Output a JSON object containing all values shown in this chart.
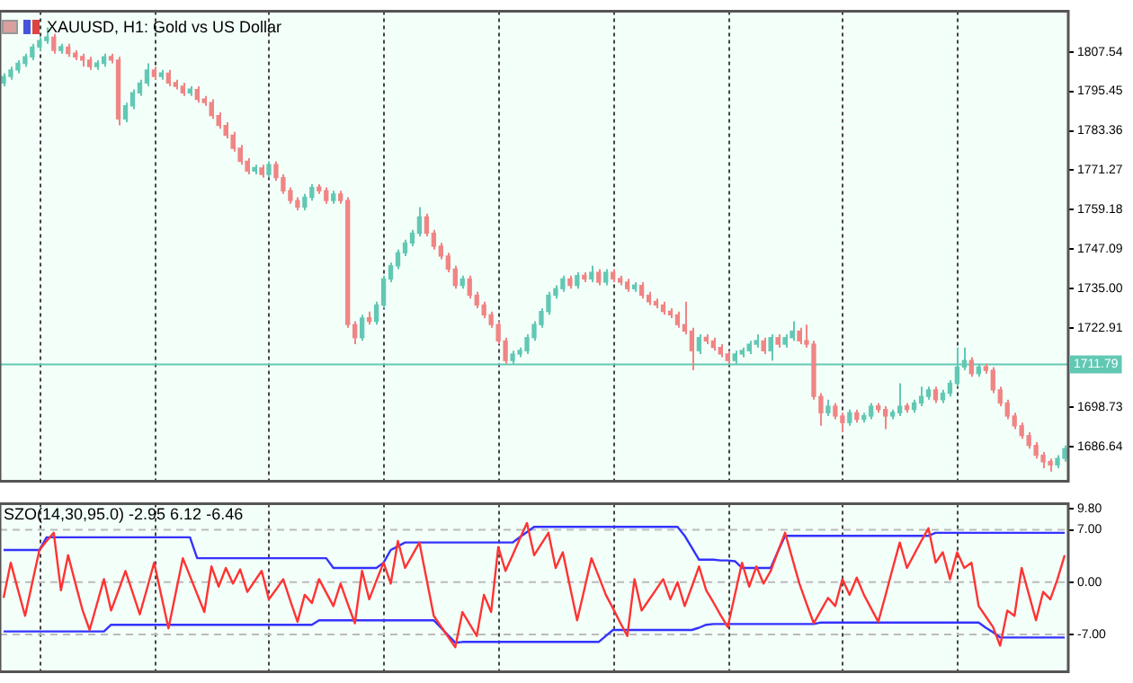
{
  "chart_data": [
    {
      "type": "candlestick",
      "title": "XAUUSD, H1:  Gold vs US Dollar",
      "categories": [
        null,
        null,
        null,
        null,
        null,
        null,
        null,
        null,
        null,
        null,
        null,
        null,
        null,
        null,
        null,
        null,
        null,
        null,
        null,
        null,
        null,
        null,
        null,
        null,
        null,
        null,
        null,
        null,
        null,
        null,
        null,
        null,
        null,
        null,
        null,
        null,
        null,
        null,
        null,
        null,
        null,
        null,
        null,
        null,
        null,
        null,
        null,
        null,
        null,
        null,
        null,
        null,
        null,
        null,
        null,
        null,
        null,
        null,
        null,
        null,
        null,
        null,
        null,
        null,
        null,
        null,
        null,
        null,
        null,
        null,
        null,
        null,
        null,
        null,
        null,
        null,
        null,
        null,
        null,
        null,
        null,
        null,
        null,
        null,
        null,
        null,
        null,
        null,
        null,
        null,
        null,
        null,
        null,
        null,
        null,
        null,
        null,
        null,
        null,
        null,
        null,
        null,
        null,
        null,
        null,
        null,
        null,
        null,
        null,
        null,
        null,
        null,
        null,
        null,
        null,
        null,
        null,
        null,
        null,
        null,
        null,
        null,
        null,
        null,
        null,
        null,
        null,
        null,
        null,
        null,
        null,
        null,
        null,
        null,
        null,
        null,
        null,
        null,
        null,
        null,
        null,
        null,
        null,
        null,
        null,
        null,
        null,
        null,
        null
      ],
      "ohlc": [
        [
          1798,
          1801,
          1797,
          1800
        ],
        [
          1800,
          1803,
          1799,
          1802
        ],
        [
          1802,
          1805,
          1801,
          1804
        ],
        [
          1804,
          1807,
          1803,
          1806
        ],
        [
          1806,
          1810,
          1805,
          1809
        ],
        [
          1809,
          1812,
          1808,
          1811
        ],
        [
          1811,
          1815,
          1810,
          1812
        ],
        [
          1812,
          1813,
          1807,
          1808
        ],
        [
          1808,
          1810,
          1807,
          1809
        ],
        [
          1809,
          1810,
          1806,
          1807
        ],
        [
          1807,
          1808,
          1805,
          1806
        ],
        [
          1806,
          1807,
          1803,
          1805
        ],
        [
          1805,
          1806,
          1802,
          1803
        ],
        [
          1803,
          1805,
          1802,
          1804
        ],
        [
          1804,
          1807,
          1803,
          1806
        ],
        [
          1806,
          1807,
          1804,
          1805
        ],
        [
          1805,
          1806,
          1785,
          1787
        ],
        [
          1787,
          1792,
          1786,
          1791
        ],
        [
          1791,
          1796,
          1790,
          1795
        ],
        [
          1795,
          1799,
          1794,
          1798
        ],
        [
          1798,
          1804,
          1797,
          1802
        ],
        [
          1802,
          1803,
          1799,
          1800
        ],
        [
          1800,
          1802,
          1799,
          1801
        ],
        [
          1801,
          1802,
          1797,
          1798
        ],
        [
          1798,
          1799,
          1796,
          1797
        ],
        [
          1797,
          1798,
          1794,
          1795
        ],
        [
          1795,
          1797,
          1794,
          1796
        ],
        [
          1796,
          1797,
          1792,
          1793
        ],
        [
          1793,
          1794,
          1791,
          1792
        ],
        [
          1792,
          1793,
          1787,
          1788
        ],
        [
          1788,
          1789,
          1784,
          1785
        ],
        [
          1785,
          1786,
          1781,
          1782
        ],
        [
          1782,
          1783,
          1777,
          1778
        ],
        [
          1778,
          1779,
          1773,
          1774
        ],
        [
          1774,
          1775,
          1770,
          1771
        ],
        [
          1771,
          1773,
          1770,
          1772
        ],
        [
          1772,
          1773,
          1769,
          1770
        ],
        [
          1770,
          1774,
          1769,
          1773
        ],
        [
          1773,
          1774,
          1768,
          1769
        ],
        [
          1769,
          1770,
          1764,
          1765
        ],
        [
          1765,
          1766,
          1761,
          1762
        ],
        [
          1762,
          1763,
          1759,
          1760
        ],
        [
          1760,
          1764,
          1759,
          1763
        ],
        [
          1763,
          1767,
          1762,
          1766
        ],
        [
          1766,
          1767,
          1764,
          1765
        ],
        [
          1765,
          1766,
          1761,
          1762
        ],
        [
          1762,
          1765,
          1761,
          1764
        ],
        [
          1764,
          1765,
          1761,
          1762
        ],
        [
          1762,
          1763,
          1723,
          1724
        ],
        [
          1724,
          1725,
          1718,
          1720
        ],
        [
          1720,
          1727,
          1719,
          1726
        ],
        [
          1726,
          1728,
          1724,
          1725
        ],
        [
          1725,
          1731,
          1724,
          1730
        ],
        [
          1730,
          1739,
          1729,
          1738
        ],
        [
          1738,
          1743,
          1737,
          1742
        ],
        [
          1742,
          1747,
          1741,
          1746
        ],
        [
          1746,
          1750,
          1745,
          1749
        ],
        [
          1749,
          1753,
          1748,
          1752
        ],
        [
          1752,
          1760,
          1751,
          1757
        ],
        [
          1757,
          1758,
          1751,
          1752
        ],
        [
          1752,
          1753,
          1747,
          1748
        ],
        [
          1748,
          1749,
          1744,
          1745
        ],
        [
          1745,
          1746,
          1740,
          1741
        ],
        [
          1741,
          1742,
          1735,
          1736
        ],
        [
          1736,
          1739,
          1735,
          1738
        ],
        [
          1738,
          1739,
          1732,
          1733
        ],
        [
          1733,
          1734,
          1729,
          1730
        ],
        [
          1730,
          1731,
          1726,
          1727
        ],
        [
          1727,
          1728,
          1723,
          1724
        ],
        [
          1724,
          1725,
          1718,
          1719
        ],
        [
          1719,
          1720,
          1712,
          1713
        ],
        [
          1713,
          1716,
          1712,
          1715
        ],
        [
          1715,
          1717,
          1714,
          1716
        ],
        [
          1716,
          1721,
          1715,
          1720
        ],
        [
          1720,
          1725,
          1719,
          1724
        ],
        [
          1724,
          1729,
          1723,
          1728
        ],
        [
          1728,
          1734,
          1727,
          1733
        ],
        [
          1733,
          1736,
          1732,
          1735
        ],
        [
          1735,
          1739,
          1734,
          1738
        ],
        [
          1738,
          1739,
          1735,
          1736
        ],
        [
          1736,
          1740,
          1735,
          1739
        ],
        [
          1739,
          1740,
          1737,
          1738
        ],
        [
          1738,
          1742,
          1737,
          1740
        ],
        [
          1740,
          1741,
          1736,
          1737
        ],
        [
          1737,
          1741,
          1736,
          1740
        ],
        [
          1740,
          1741,
          1737,
          1738
        ],
        [
          1738,
          1739,
          1736,
          1737
        ],
        [
          1737,
          1738,
          1734,
          1735
        ],
        [
          1735,
          1737,
          1734,
          1736
        ],
        [
          1736,
          1737,
          1732,
          1733
        ],
        [
          1733,
          1734,
          1730,
          1731
        ],
        [
          1731,
          1732,
          1729,
          1730
        ],
        [
          1730,
          1731,
          1727,
          1728
        ],
        [
          1728,
          1729,
          1726,
          1727
        ],
        [
          1727,
          1728,
          1723,
          1724
        ],
        [
          1724,
          1731,
          1721,
          1722
        ],
        [
          1722,
          1723,
          1710,
          1716
        ],
        [
          1716,
          1721,
          1715,
          1720
        ],
        [
          1720,
          1721,
          1718,
          1719
        ],
        [
          1719,
          1720,
          1716,
          1717
        ],
        [
          1717,
          1718,
          1714,
          1715
        ],
        [
          1715,
          1716,
          1712,
          1713
        ],
        [
          1713,
          1716,
          1712,
          1715
        ],
        [
          1715,
          1717,
          1714,
          1716
        ],
        [
          1716,
          1719,
          1715,
          1718
        ],
        [
          1718,
          1721,
          1717,
          1719
        ],
        [
          1719,
          1720,
          1715,
          1716
        ],
        [
          1716,
          1721,
          1713,
          1720
        ],
        [
          1720,
          1721,
          1717,
          1718
        ],
        [
          1718,
          1721,
          1717,
          1720
        ],
        [
          1720,
          1725,
          1719,
          1722
        ],
        [
          1722,
          1723,
          1718,
          1719
        ],
        [
          1719,
          1724,
          1717,
          1718
        ],
        [
          1718,
          1719,
          1701,
          1702
        ],
        [
          1702,
          1703,
          1693,
          1697
        ],
        [
          1697,
          1701,
          1696,
          1699
        ],
        [
          1699,
          1700,
          1695,
          1696
        ],
        [
          1696,
          1697,
          1691,
          1694
        ],
        [
          1694,
          1698,
          1693,
          1697
        ],
        [
          1697,
          1698,
          1694,
          1695
        ],
        [
          1695,
          1697,
          1694,
          1696
        ],
        [
          1696,
          1700,
          1695,
          1699
        ],
        [
          1699,
          1700,
          1697,
          1698
        ],
        [
          1698,
          1699,
          1692,
          1696
        ],
        [
          1696,
          1698,
          1695,
          1697
        ],
        [
          1697,
          1706,
          1696,
          1699
        ],
        [
          1699,
          1700,
          1697,
          1698
        ],
        [
          1698,
          1701,
          1697,
          1700
        ],
        [
          1700,
          1705,
          1699,
          1702
        ],
        [
          1702,
          1705,
          1701,
          1704
        ],
        [
          1704,
          1705,
          1700,
          1701
        ],
        [
          1701,
          1704,
          1700,
          1703
        ],
        [
          1703,
          1707,
          1702,
          1706
        ],
        [
          1706,
          1717,
          1705,
          1711
        ],
        [
          1711,
          1717,
          1710,
          1713
        ],
        [
          1713,
          1714,
          1708,
          1709
        ],
        [
          1709,
          1712,
          1708,
          1711
        ],
        [
          1711,
          1712,
          1709,
          1710
        ],
        [
          1710,
          1711,
          1703,
          1704
        ],
        [
          1704,
          1705,
          1699,
          1700
        ],
        [
          1700,
          1701,
          1695,
          1696
        ],
        [
          1696,
          1697,
          1692,
          1693
        ],
        [
          1693,
          1694,
          1689,
          1690
        ],
        [
          1690,
          1691,
          1686,
          1687
        ],
        [
          1687,
          1688,
          1683,
          1684
        ],
        [
          1684,
          1685,
          1680,
          1682
        ],
        [
          1682,
          1683,
          1679,
          1681
        ],
        [
          1681,
          1684,
          1680,
          1683
        ],
        [
          1683,
          1687,
          1682,
          1686
        ]
      ],
      "ylim": [
        1676,
        1820
      ],
      "yticks": [
        1807.54,
        1795.45,
        1783.36,
        1771.27,
        1759.18,
        1747.09,
        {
          "value": 1735,
          "label": "1735.00"
        },
        1722.91,
        1698.73,
        1686.64
      ],
      "tick_labels": "y",
      "ref_lines": [
        {
          "axis": "y",
          "value": 1711.79,
          "label": "1711.79",
          "color": "#62c8b4"
        }
      ]
    },
    {
      "type": "line",
      "title": "SZO(14,30,95.0) -2.95 6.12 -6.46",
      "categories": [
        null,
        null,
        null,
        null,
        null,
        null,
        null,
        null,
        null,
        null,
        null,
        null,
        null,
        null,
        null,
        null,
        null,
        null,
        null,
        null,
        null,
        null,
        null,
        null,
        null,
        null,
        null,
        null,
        null,
        null,
        null,
        null,
        null,
        null,
        null,
        null,
        null,
        null,
        null,
        null,
        null,
        null,
        null,
        null,
        null,
        null,
        null,
        null,
        null,
        null,
        null,
        null,
        null,
        null,
        null,
        null,
        null,
        null,
        null,
        null,
        null,
        null,
        null,
        null,
        null,
        null,
        null,
        null,
        null,
        null,
        null,
        null,
        null,
        null,
        null,
        null,
        null,
        null,
        null,
        null,
        null,
        null,
        null,
        null,
        null,
        null,
        null,
        null,
        null,
        null,
        null,
        null,
        null,
        null,
        null,
        null,
        null,
        null,
        null,
        null,
        null,
        null,
        null,
        null,
        null,
        null,
        null,
        null,
        null,
        null,
        null,
        null,
        null,
        null,
        null,
        null,
        null,
        null,
        null,
        null,
        null,
        null,
        null,
        null,
        null,
        null,
        null,
        null,
        null,
        null,
        null,
        null,
        null,
        null,
        null,
        null,
        null,
        null,
        null,
        null,
        null,
        null,
        null,
        null,
        null,
        null,
        null,
        null,
        null
      ],
      "series": [
        {
          "color": "#ff3333",
          "values": [
            -2.1,
            2.6,
            -1,
            -4.5,
            -0.1,
            4.3,
            5.5,
            6.6,
            -1.1,
            3.6,
            -0.1,
            -3.7,
            -6.4,
            -3,
            0.4,
            -3.8,
            -1.2,
            1.5,
            -1.4,
            -4.3,
            -0.9,
            2.6,
            -1.8,
            -6.2,
            -1.5,
            3.2,
            0.8,
            -1.6,
            -4,
            2.1,
            -0.6,
            1.9,
            -0.2,
            1.7,
            -1.3,
            0.1,
            1.5,
            -2.3,
            -1,
            0.4,
            -2.5,
            -5.3,
            -1.7,
            -2.8,
            0.4,
            -1.4,
            -3.2,
            -0.2,
            -2.9,
            -5.5,
            1.5,
            -2.3,
            0.2,
            2.6,
            -0.2,
            5.5,
            1.9,
            3.6,
            5.3,
            0.4,
            -4.5,
            -5.9,
            -7.3,
            -8.7,
            -4,
            -5.6,
            -7.2,
            -1.7,
            -4,
            4.7,
            1.5,
            3.6,
            5.8,
            7.9,
            3.6,
            5.1,
            6.6,
            1.9,
            4,
            -0.6,
            -5.1,
            -1,
            3.2,
            0.8,
            -1.7,
            -3.5,
            -5.4,
            -7.2,
            0.4,
            -3.8,
            -2.4,
            -1,
            0.4,
            -2.3,
            0,
            -3.2,
            -0.6,
            2.1,
            -1.1,
            -2.7,
            -4.4,
            -6,
            -1.7,
            2.6,
            -0.6,
            2.1,
            -0.2,
            1.5,
            4.1,
            6.6,
            3.2,
            -0.2,
            -2.9,
            -5.5,
            -3.8,
            -2.1,
            -3.2,
            0.4,
            -1.7,
            0.6,
            -1.7,
            -3.5,
            -5.3,
            -1.8,
            1.8,
            5.3,
            1.9,
            3.7,
            5.5,
            7.2,
            2.6,
            4,
            0.4,
            4,
            1.9,
            2.6,
            -3.2,
            -4.6,
            -6,
            -8.5,
            -3.8,
            -4.5,
            1.9,
            -1.6,
            -5.1,
            -1.3,
            -2.3,
            0.4,
            3.6
          ]
        },
        {
          "color": "#3333ff",
          "values": [
            4.3,
            4.3,
            4.3,
            4.3,
            4.3,
            4.3,
            6,
            6,
            6,
            6,
            6,
            6,
            6,
            6,
            6,
            6,
            6,
            6,
            6,
            6,
            6,
            6,
            6,
            6,
            6,
            6,
            6,
            3.2,
            3.2,
            3.2,
            3.2,
            3.2,
            3.2,
            3.2,
            3.2,
            3.2,
            3.2,
            3.2,
            3.2,
            3.2,
            3.2,
            3.2,
            3.2,
            3.2,
            3.2,
            3.2,
            1.9,
            1.9,
            1.9,
            1.9,
            1.9,
            1.9,
            1.9,
            2.6,
            4.3,
            4.8,
            5.3,
            5.3,
            5.3,
            5.3,
            5.3,
            5.3,
            5.3,
            5.3,
            5.3,
            5.3,
            5.3,
            5.3,
            5.3,
            5.3,
            5.3,
            5.3,
            6,
            6.7,
            7.4,
            7.4,
            7.4,
            7.4,
            7.4,
            7.4,
            7.4,
            7.4,
            7.4,
            7.4,
            7.4,
            7.4,
            7.4,
            7.4,
            7.4,
            7.4,
            7.4,
            7.4,
            7.4,
            7.4,
            7.4,
            6.2,
            4.6,
            3,
            3,
            3,
            2.9,
            2.9,
            2.8,
            1.9,
            1.9,
            1.9,
            1.9,
            1.9,
            4.1,
            6.2,
            6.2,
            6.2,
            6.2,
            6.2,
            6.2,
            6.2,
            6.2,
            6.2,
            6.2,
            6.2,
            6.2,
            6.2,
            6.2,
            6.2,
            6.2,
            6.2,
            6.2,
            6.2,
            6.2,
            6.2,
            6.6,
            6.6,
            6.6,
            6.6,
            6.6,
            6.6,
            6.6,
            6.6,
            6.6,
            6.6,
            6.6,
            6.6,
            6.6,
            6.6,
            6.6,
            6.6,
            6.6,
            6.6,
            6.6
          ]
        },
        {
          "color": "#3333ff",
          "values": [
            -6.6,
            -6.6,
            -6.6,
            -6.6,
            -6.6,
            -6.6,
            -6.6,
            -6.6,
            -6.6,
            -6.6,
            -6.6,
            -6.6,
            -6.6,
            -6.6,
            -6.6,
            -5.7,
            -5.7,
            -5.7,
            -5.7,
            -5.7,
            -5.7,
            -5.7,
            -5.7,
            -5.7,
            -5.7,
            -5.7,
            -5.7,
            -5.7,
            -5.7,
            -5.7,
            -5.7,
            -5.7,
            -5.7,
            -5.7,
            -5.7,
            -5.7,
            -5.7,
            -5.7,
            -5.7,
            -5.7,
            -5.7,
            -5.7,
            -5.7,
            -5.7,
            -5.1,
            -5.1,
            -5.1,
            -5.1,
            -5.1,
            -5.1,
            -5.1,
            -5.1,
            -5.1,
            -5.1,
            -5.1,
            -5.1,
            -5.1,
            -5.1,
            -5.1,
            -5.1,
            -5.1,
            -6.1,
            -7.1,
            -8.1,
            -8,
            -8,
            -8,
            -8,
            -8,
            -8,
            -8,
            -8,
            -8,
            -8,
            -8,
            -8,
            -8,
            -8,
            -8,
            -8,
            -8,
            -8,
            -8,
            -8,
            -7.2,
            -6.4,
            -6.4,
            -6.4,
            -6.4,
            -6.4,
            -6.4,
            -6.4,
            -6.4,
            -6.4,
            -6.4,
            -6.4,
            -6.4,
            -6.1,
            -5.7,
            -5.6,
            -5.6,
            -5.6,
            -5.6,
            -5.6,
            -5.6,
            -5.6,
            -5.6,
            -5.6,
            -5.6,
            -5.6,
            -5.6,
            -5.6,
            -5.6,
            -5.6,
            -5.4,
            -5.4,
            -5.4,
            -5.4,
            -5.4,
            -5.4,
            -5.4,
            -5.4,
            -5.4,
            -5.4,
            -5.4,
            -5.4,
            -5.4,
            -5.4,
            -5.4,
            -5.4,
            -5.4,
            -5.4,
            -5.4,
            -5.4,
            -5.4,
            -5.4,
            -5.4,
            -6.1,
            -6.7,
            -7.4,
            -7.4,
            -7.4,
            -7.4,
            -7.4,
            -7.4,
            -7.4,
            -7.4,
            -7.4,
            -7.4
          ]
        }
      ],
      "ylim": [
        -12,
        10.5
      ],
      "yticks": [
        {
          "value": 9.8,
          "label": "9.80"
        },
        {
          "value": 7,
          "label": "7.00"
        },
        {
          "value": 0,
          "label": "0.00"
        },
        {
          "value": -7,
          "label": "-7.00"
        }
      ],
      "tick_labels": "y",
      "ref_lines": [
        {
          "axis": "y",
          "value": 7,
          "color": "#bbbbbb",
          "line_style": "dashed"
        },
        {
          "axis": "y",
          "value": 0,
          "color": "#bbbbbb",
          "line_style": "dashed"
        },
        {
          "axis": "y",
          "value": -7,
          "color": "#bbbbbb",
          "line_style": "dashed"
        }
      ]
    }
  ]
}
